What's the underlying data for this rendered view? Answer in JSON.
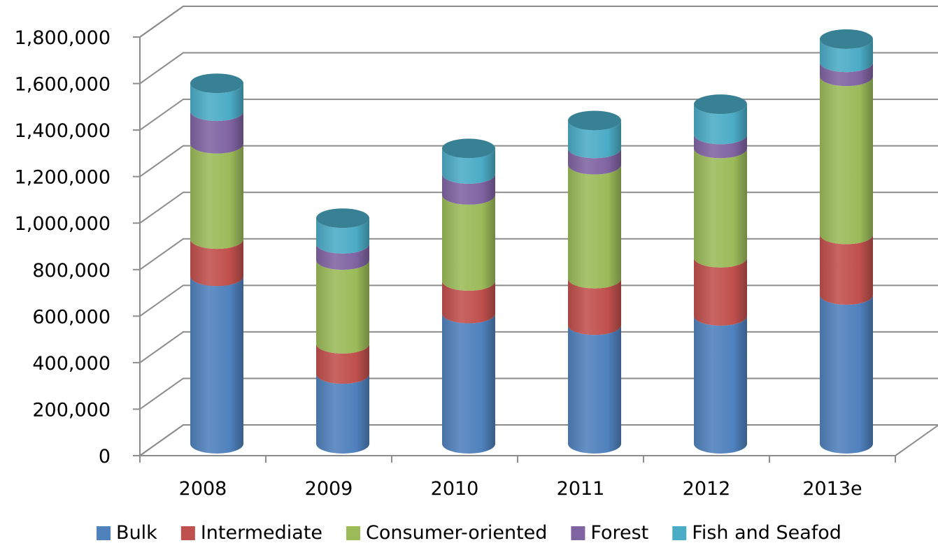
{
  "chart_data": {
    "type": "bar",
    "stacked": true,
    "style": "3d-cylinder",
    "title": "",
    "xlabel": "",
    "ylabel": "",
    "categories": [
      "2008",
      "2009",
      "2010",
      "2011",
      "2012",
      "2013e"
    ],
    "ylim": [
      0,
      1800000
    ],
    "yticks": [
      0,
      200000,
      400000,
      600000,
      800000,
      1000000,
      1200000,
      1400000,
      1600000,
      1800000
    ],
    "ytick_labels": [
      "0",
      "200,000",
      "400,000",
      "600,000",
      "800,000",
      "1,000,000",
      "1,200,000",
      "1,400,000",
      "1,600,000",
      "1,800,000"
    ],
    "grid": true,
    "legend_position": "bottom",
    "series": [
      {
        "name": "Bulk",
        "color": "#4F81BD",
        "values": [
          720000,
          300000,
          560000,
          510000,
          550000,
          640000
        ]
      },
      {
        "name": "Intermediate",
        "color": "#C0504D",
        "values": [
          160000,
          130000,
          140000,
          200000,
          250000,
          260000
        ]
      },
      {
        "name": "Consumer-oriented",
        "color": "#9BBB59",
        "values": [
          410000,
          360000,
          370000,
          490000,
          470000,
          680000
        ]
      },
      {
        "name": "Forest",
        "color": "#8064A2",
        "values": [
          140000,
          70000,
          90000,
          70000,
          60000,
          60000
        ]
      },
      {
        "name": "Fish and Seafod",
        "color": "#4BACC6",
        "values": [
          120000,
          110000,
          110000,
          120000,
          130000,
          100000
        ]
      }
    ]
  }
}
